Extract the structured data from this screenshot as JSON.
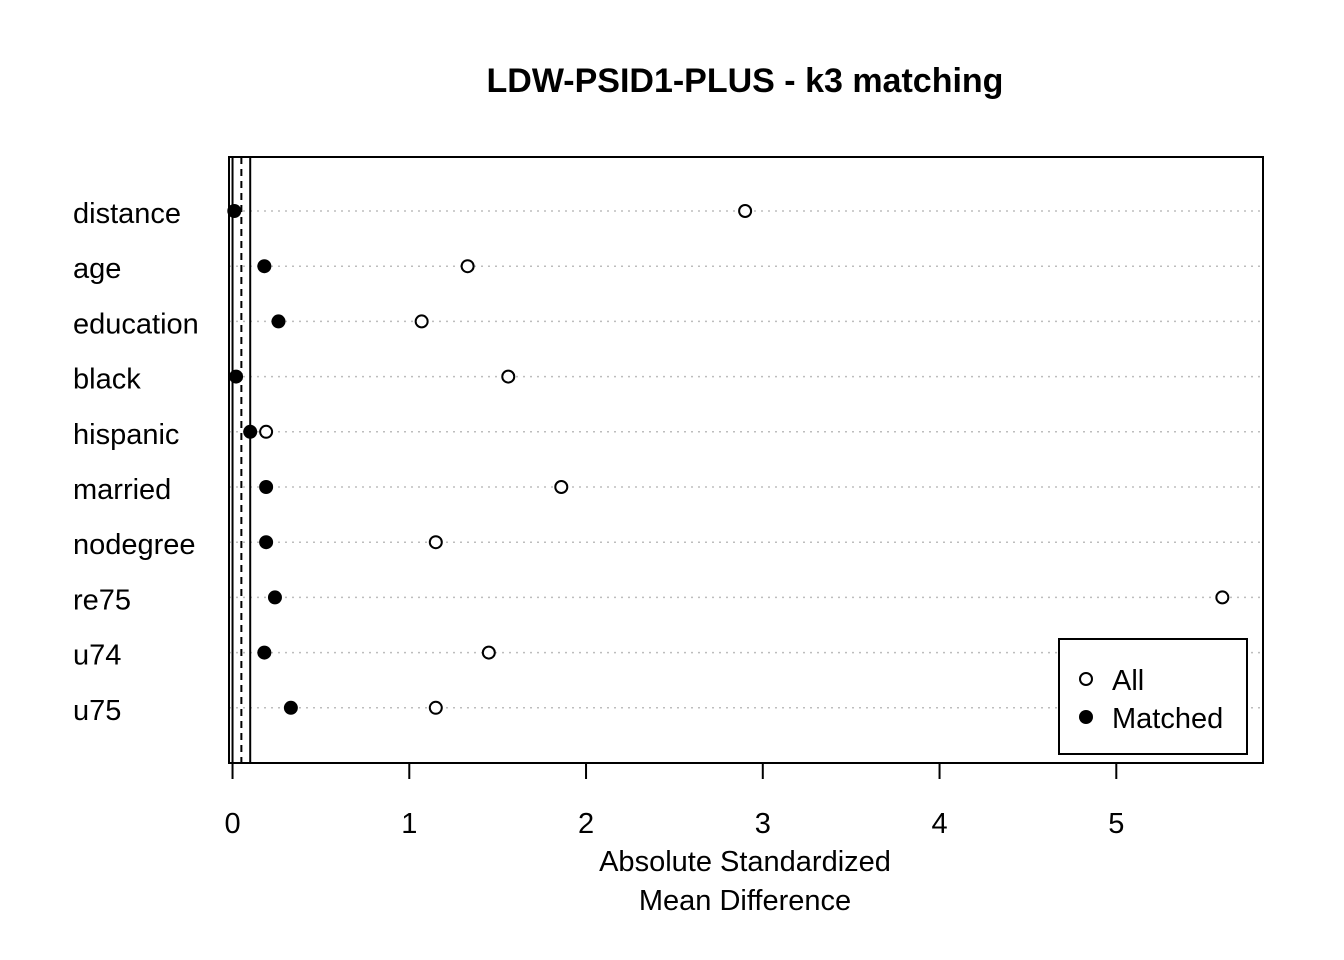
{
  "chart_data": {
    "type": "scatter",
    "title": "LDW-PSID1-PLUS - k3 matching",
    "xlabel": [
      "Absolute Standardized",
      "Mean Difference"
    ],
    "ylabel": "",
    "categories": [
      "distance",
      "age",
      "education",
      "black",
      "hispanic",
      "married",
      "nodegree",
      "re75",
      "u74",
      "u75"
    ],
    "series": [
      {
        "name": "All",
        "marker": "open-circle",
        "values": [
          2.9,
          1.33,
          1.07,
          1.56,
          0.19,
          1.86,
          1.15,
          5.6,
          1.45,
          1.15
        ]
      },
      {
        "name": "Matched",
        "marker": "filled-circle",
        "values": [
          0.01,
          0.18,
          0.26,
          0.02,
          0.1,
          0.19,
          0.19,
          0.24,
          0.18,
          0.33
        ]
      }
    ],
    "xticks": [
      0,
      1,
      2,
      3,
      4,
      5
    ],
    "xlim": [
      -0.02,
      5.83
    ],
    "reference_lines": [
      {
        "value": 0,
        "style": "solid"
      },
      {
        "value": 0.05,
        "style": "dashed"
      },
      {
        "value": 0.1,
        "style": "solid"
      }
    ],
    "grid": "horizontal-dotted",
    "legend_position": "bottom-right"
  }
}
